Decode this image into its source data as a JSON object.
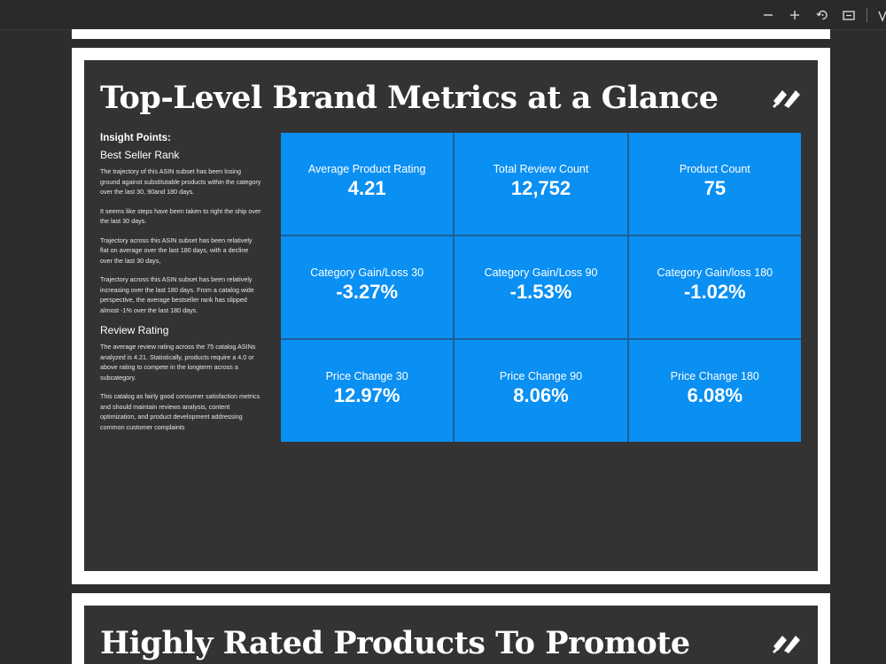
{
  "slide1": {
    "title": "Top-Level Brand Metrics at a Glance",
    "insights": {
      "heading": "Insight Points:",
      "sections": [
        {
          "subtitle": "Best Seller Rank",
          "paragraphs": [
            "The trajectory of this ASIN subset has been losing ground against substitutable products within the category over the last 30, 90and 180 days.",
            "It seems like steps have been taken to right the ship over the last 30 days.",
            "Trajectory across this ASIN subset has been relatively flat on average over the last 180 days, with a decline over the last 30 days,",
            "Trajectory across this ASIN subset has been relatively increasing over the last 180 days. From a catalog wide perspective, the average bestseller rank has slipped almost -1% over the last 180 days."
          ]
        },
        {
          "subtitle": "Review Rating",
          "paragraphs": [
            "The average review rating across the 75 catalog ASINs analyzed is 4.21. Statistically, products require a 4.0 or above rating to compete in the longterm across a subcategory.",
            "This catalog as fairly good consumer satisfaction metrics and should maintain reviews analysis, content optimization, and product development addressing common customer complaints"
          ]
        }
      ]
    },
    "metrics": [
      {
        "label": "Average Product Rating",
        "value": "4.21"
      },
      {
        "label": "Total Review Count",
        "value": "12,752"
      },
      {
        "label": "Product Count",
        "value": "75"
      },
      {
        "label": "Category Gain/Loss 30",
        "value": "-3.27%"
      },
      {
        "label": "Category Gain/Loss 90",
        "value": "-1.53%"
      },
      {
        "label": "Category Gain/loss 180",
        "value": "-1.02%"
      },
      {
        "label": "Price Change 30",
        "value": "12.97%"
      },
      {
        "label": "Price Change 90",
        "value": "8.06%"
      },
      {
        "label": "Price Change 180",
        "value": "6.08%"
      }
    ]
  },
  "slide2": {
    "title": "Highly Rated Products To Promote"
  },
  "toolbar": {
    "icons": [
      "zoom-out-icon",
      "zoom-in-icon",
      "rotate-icon",
      "fit-page-icon",
      "download-icon"
    ]
  },
  "colors": {
    "app_background": "#2d2d2d",
    "slide_background": "#333333",
    "tile_blue": "#0a8ff2",
    "page_white": "#ffffff"
  }
}
